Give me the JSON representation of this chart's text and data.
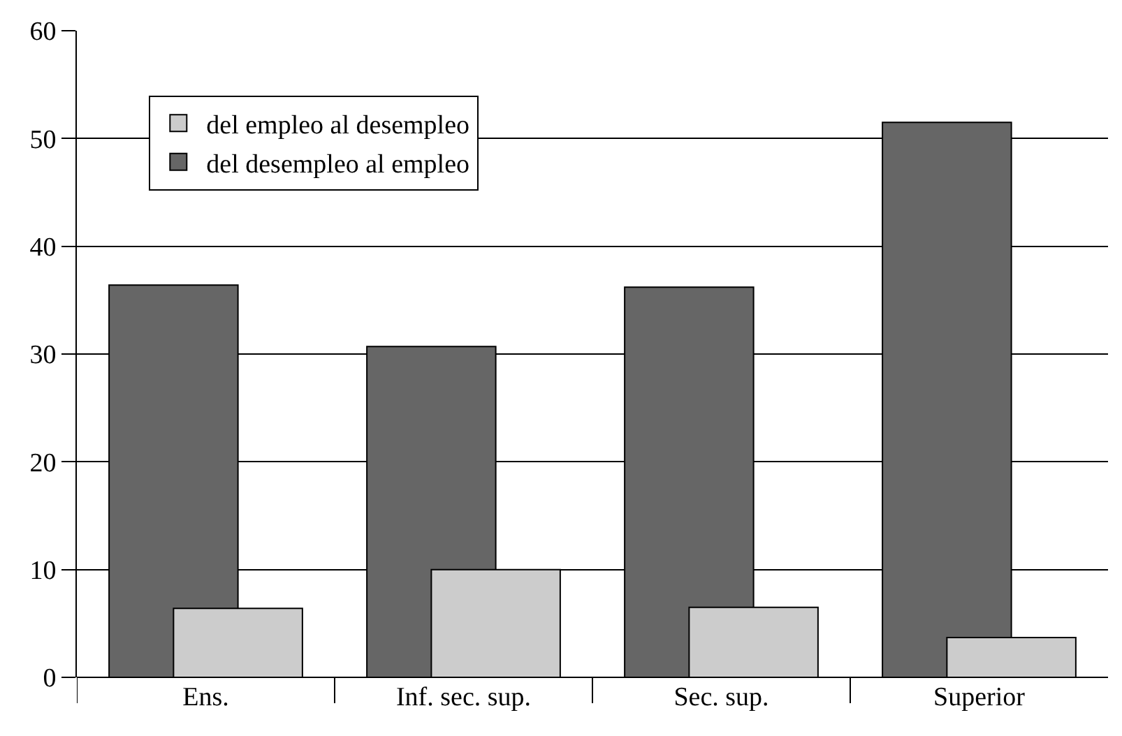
{
  "chart_data": {
    "type": "bar",
    "categories": [
      "Ens.",
      "Inf. sec. sup.",
      "Sec. sup.",
      "Superior"
    ],
    "series": [
      {
        "name": "del empleo al desempleo",
        "color": "#cccccc",
        "values": [
          6.4,
          10,
          6.5,
          3.7
        ]
      },
      {
        "name": "del desempleo al empleo",
        "color": "#666666",
        "values": [
          36.4,
          30.7,
          36.2,
          51.5
        ]
      }
    ],
    "ylim": [
      0,
      60
    ],
    "yticks": [
      0,
      10,
      20,
      30,
      40,
      50,
      60
    ],
    "grid": "y",
    "legend": "top left"
  }
}
